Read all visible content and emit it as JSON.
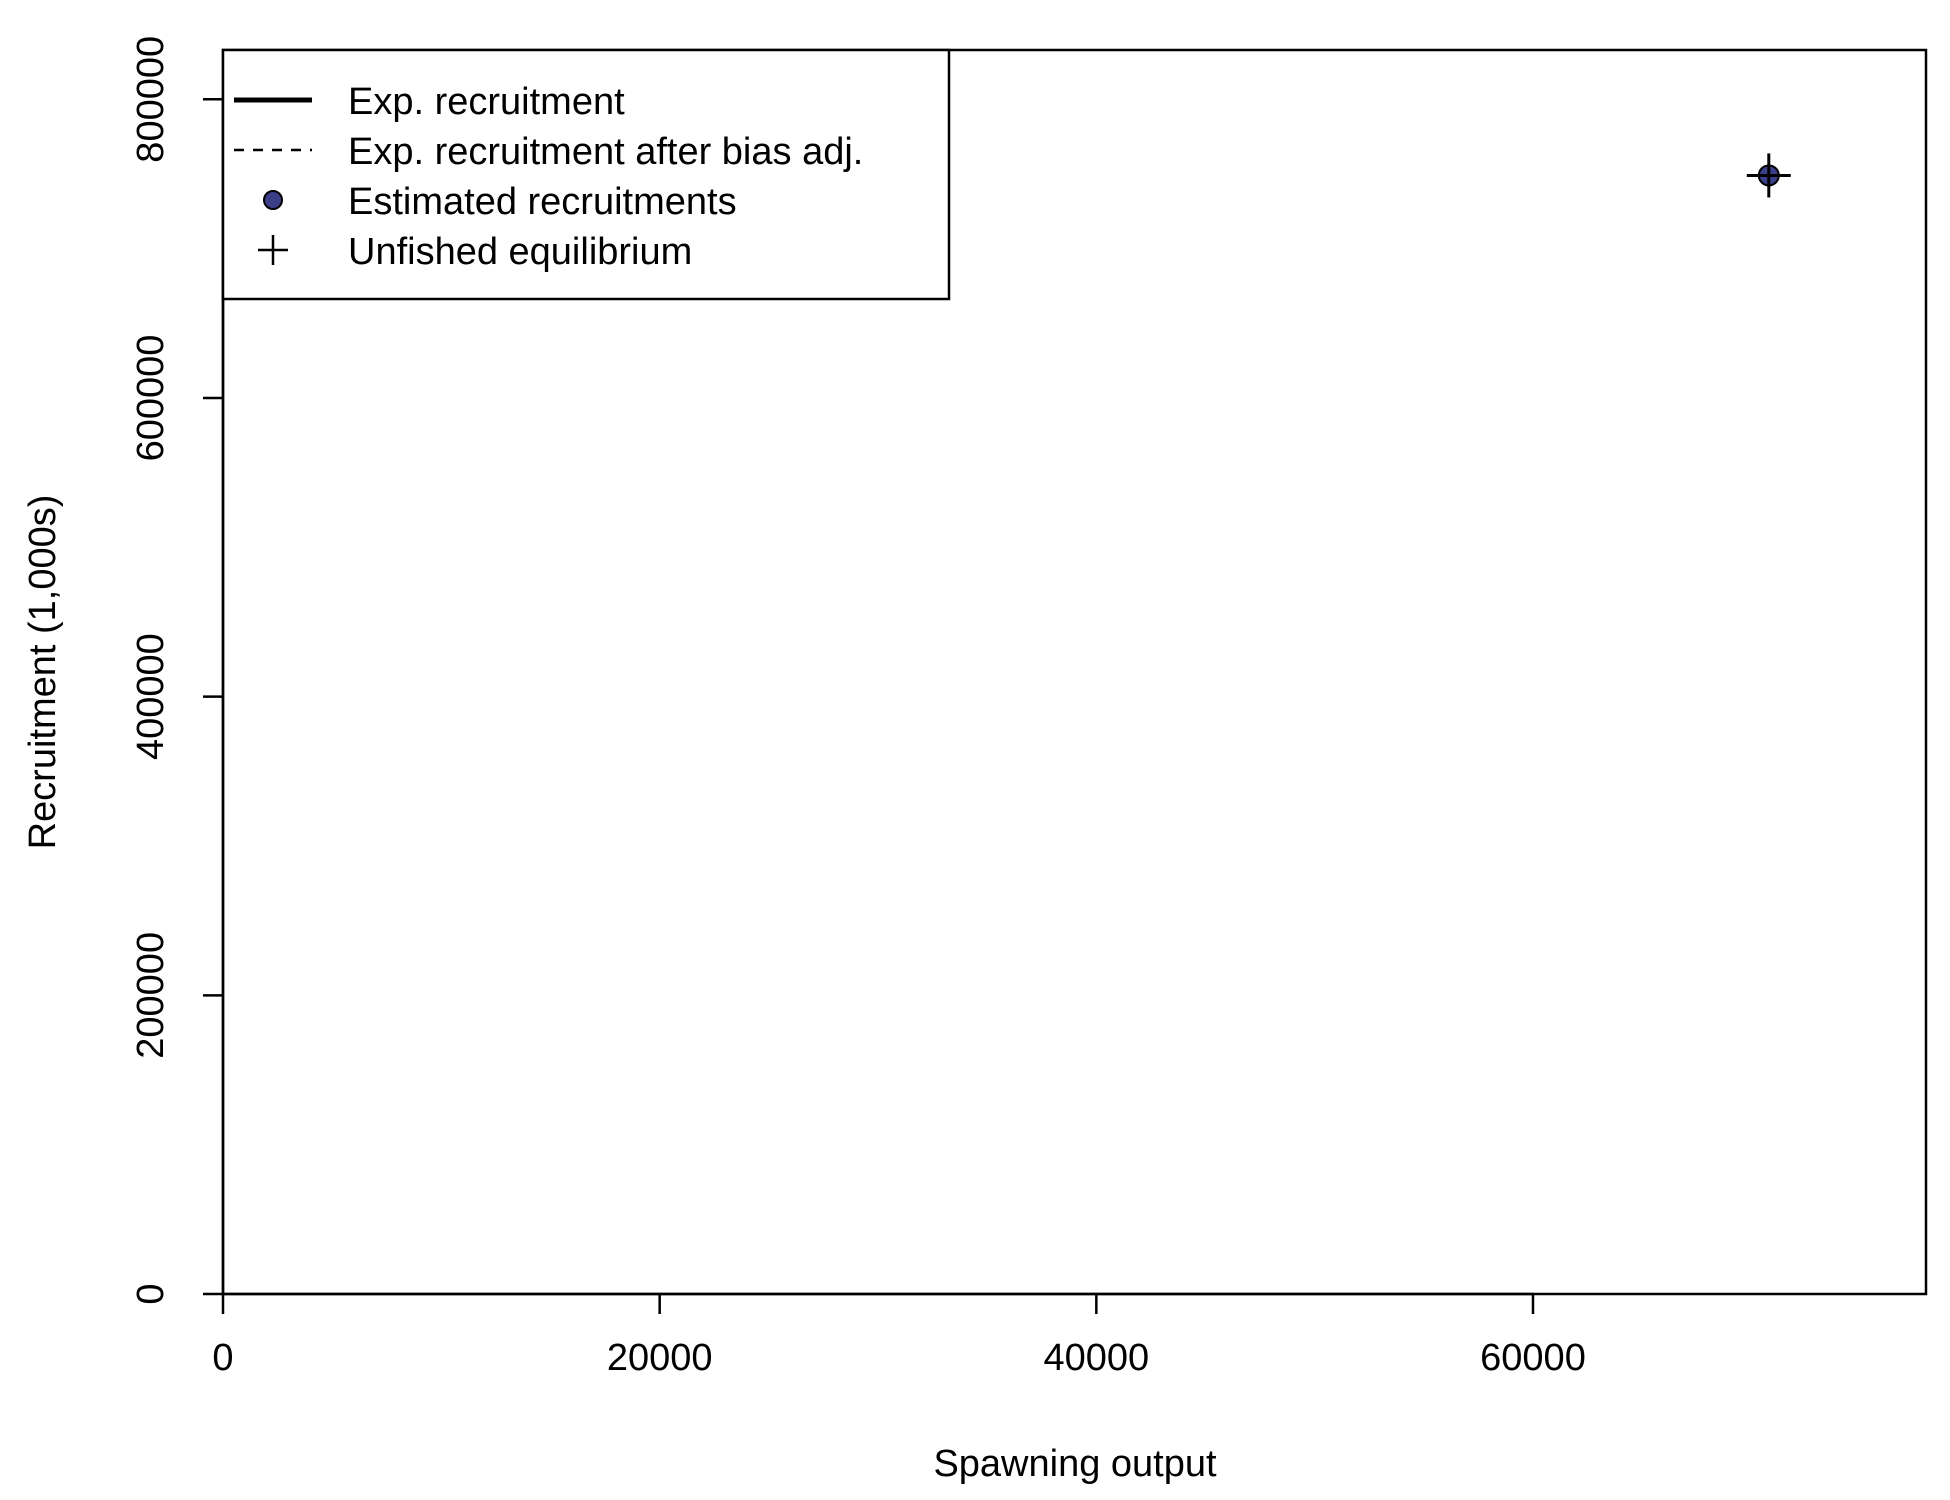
{
  "chart_data": {
    "type": "scatter",
    "title": "",
    "xlabel": "Spawning output",
    "ylabel": "Recruitment (1,000s)",
    "xlim": [
      0,
      78000
    ],
    "ylim": [
      0,
      833000
    ],
    "x_ticks": [
      0,
      20000,
      40000,
      60000
    ],
    "x_tick_labels": [
      "0",
      "20000",
      "40000",
      "60000"
    ],
    "y_ticks": [
      0,
      200000,
      400000,
      600000,
      800000
    ],
    "y_tick_labels": [
      "0",
      "200000",
      "400000",
      "600000",
      "800000"
    ],
    "grid": false,
    "legend_position": "top-left",
    "legend": [
      {
        "label": "Exp. recruitment",
        "symbol": "thick-line"
      },
      {
        "label": "Exp. recruitment after bias adj.",
        "symbol": "dashed-line"
      },
      {
        "label": "Estimated recruitments",
        "symbol": "filled-circle"
      },
      {
        "label": "Unfished equilibrium",
        "symbol": "plus"
      }
    ],
    "series": [
      {
        "name": "Estimated recruitments",
        "points": [
          {
            "x": 70800,
            "y": 749000
          }
        ]
      },
      {
        "name": "Unfished equilibrium",
        "points": [
          {
            "x": 70800,
            "y": 749000
          }
        ]
      }
    ],
    "colors": {
      "point_fill": "#3b3f8a",
      "point_stroke": "#000000"
    }
  }
}
